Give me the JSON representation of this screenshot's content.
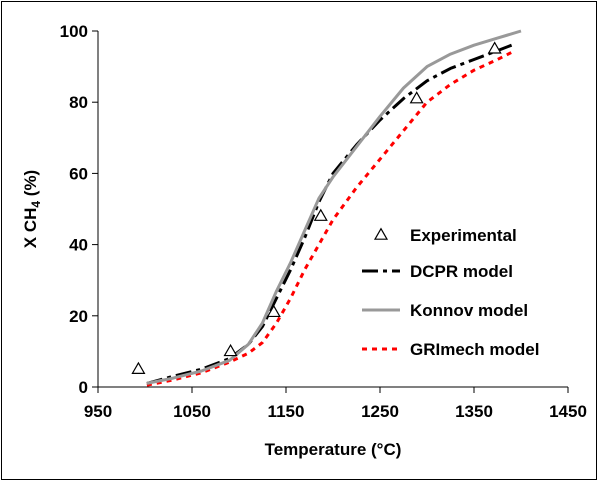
{
  "chart_data": {
    "type": "line",
    "xlabel": "Temperature (°C)",
    "ylabel": "X CH4 (%)",
    "xlim": [
      950,
      1450
    ],
    "ylim": [
      0,
      100
    ],
    "xticks": [
      950,
      1050,
      1150,
      1250,
      1350,
      1450
    ],
    "yticks": [
      0,
      20,
      40,
      60,
      80,
      100
    ],
    "grid": false,
    "legend_position": "center-right",
    "series": [
      {
        "name": "Experimental",
        "style": "marker-triangle",
        "color": "#000000",
        "points": [
          [
            993,
            5
          ],
          [
            1091,
            10
          ],
          [
            1137,
            21
          ],
          [
            1187,
            48
          ],
          [
            1289,
            81
          ],
          [
            1372,
            95
          ]
        ]
      },
      {
        "name": "DCPR model",
        "style": "dash-dot",
        "color": "#000000",
        "points": [
          [
            1002,
            1
          ],
          [
            1030,
            3
          ],
          [
            1060,
            5
          ],
          [
            1090,
            8
          ],
          [
            1110,
            12
          ],
          [
            1125,
            17
          ],
          [
            1140,
            25
          ],
          [
            1155,
            33
          ],
          [
            1170,
            42
          ],
          [
            1185,
            52
          ],
          [
            1200,
            60
          ],
          [
            1225,
            68
          ],
          [
            1250,
            75
          ],
          [
            1275,
            81
          ],
          [
            1300,
            86
          ],
          [
            1325,
            89.5
          ],
          [
            1350,
            92
          ],
          [
            1375,
            94.5
          ],
          [
            1390,
            96
          ]
        ]
      },
      {
        "name": "Konnov model",
        "style": "solid",
        "color": "#999999",
        "points": [
          [
            1002,
            1
          ],
          [
            1030,
            2.5
          ],
          [
            1060,
            4.5
          ],
          [
            1090,
            7.5
          ],
          [
            1110,
            12
          ],
          [
            1125,
            18
          ],
          [
            1140,
            27
          ],
          [
            1155,
            35
          ],
          [
            1170,
            44
          ],
          [
            1185,
            53
          ],
          [
            1200,
            59
          ],
          [
            1225,
            67.5
          ],
          [
            1250,
            76
          ],
          [
            1275,
            84
          ],
          [
            1300,
            90
          ],
          [
            1325,
            93.5
          ],
          [
            1350,
            96
          ],
          [
            1375,
            98
          ],
          [
            1400,
            100
          ]
        ]
      },
      {
        "name": "GRImech model",
        "style": "dotted",
        "color": "#ff0000",
        "points": [
          [
            1002,
            0.5
          ],
          [
            1030,
            2
          ],
          [
            1060,
            4
          ],
          [
            1090,
            7
          ],
          [
            1110,
            9.5
          ],
          [
            1125,
            12.5
          ],
          [
            1140,
            18
          ],
          [
            1155,
            25
          ],
          [
            1170,
            33
          ],
          [
            1185,
            40
          ],
          [
            1200,
            47
          ],
          [
            1225,
            56
          ],
          [
            1250,
            64
          ],
          [
            1275,
            72
          ],
          [
            1300,
            80
          ],
          [
            1325,
            85
          ],
          [
            1350,
            89
          ],
          [
            1375,
            92
          ],
          [
            1390,
            94
          ]
        ]
      }
    ]
  }
}
